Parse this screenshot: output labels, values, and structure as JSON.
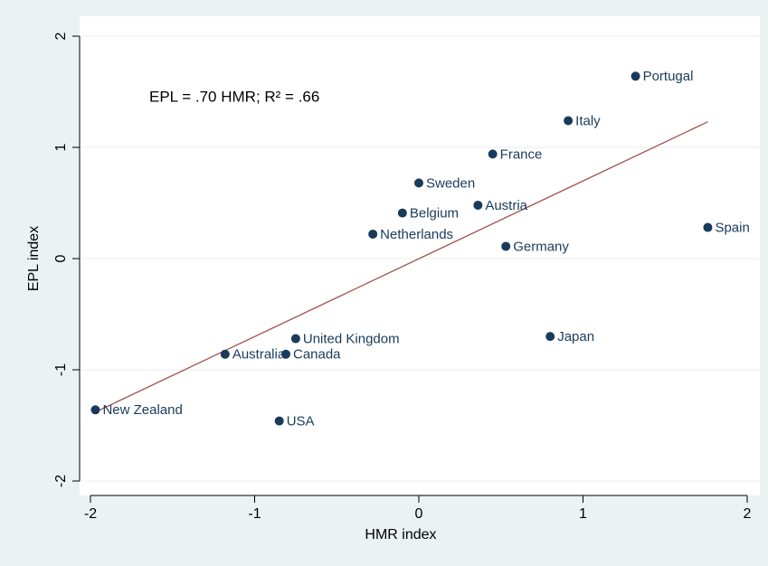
{
  "chart_data": {
    "type": "scatter",
    "xlabel": "HMR index",
    "ylabel": "EPL index",
    "annotation": "EPL = .70 HMR;  R² = .66",
    "xlim": [
      -2,
      2
    ],
    "ylim": [
      -2,
      2
    ],
    "xticks": [
      -2,
      -1,
      0,
      1,
      2
    ],
    "yticks": [
      -2,
      -1,
      0,
      1,
      2
    ],
    "grid": true,
    "series": [
      {
        "color": "#1a3a5c",
        "labels": [
          "Portugal",
          "Italy",
          "France",
          "Sweden",
          "Austria",
          "Belgium",
          "Netherlands",
          "Germany",
          "Spain",
          "Japan",
          "United Kingdom",
          "Australia",
          "Canada",
          "New Zealand",
          "USA"
        ],
        "x": [
          1.32,
          0.91,
          0.45,
          0.0,
          0.36,
          -0.1,
          -0.28,
          0.53,
          1.76,
          0.8,
          -0.75,
          -1.18,
          -0.81,
          -1.97,
          -0.85
        ],
        "values": [
          1.64,
          1.24,
          0.94,
          0.68,
          0.48,
          0.41,
          0.22,
          0.11,
          0.28,
          -0.7,
          -0.72,
          -0.86,
          -0.86,
          -1.36,
          -1.46
        ]
      }
    ],
    "fit": {
      "color": "#a0524e",
      "x": [
        -1.97,
        1.76
      ],
      "values": [
        -1.38,
        1.23
      ]
    }
  }
}
